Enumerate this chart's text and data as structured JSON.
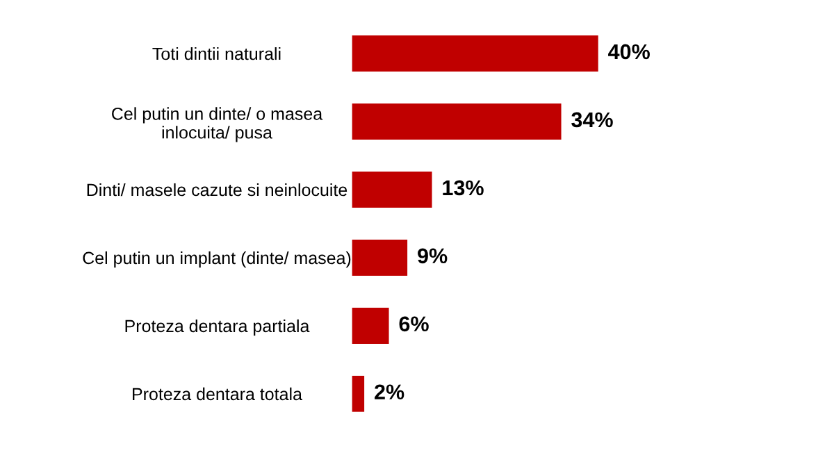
{
  "chart_data": {
    "type": "bar",
    "orientation": "horizontal",
    "categories": [
      "Toti dintii naturali",
      "Cel putin un dinte/ o masea\ninlocuita/ pusa",
      "Dinti/ masele cazute si neinlocuite",
      "Cel putin un implant (dinte/ masea)",
      "Proteza dentara partiala",
      "Proteza dentara totala"
    ],
    "values": [
      40,
      34,
      13,
      9,
      6,
      2
    ],
    "value_labels": [
      "40%",
      "34%",
      "13%",
      "9%",
      "6%",
      "2%"
    ],
    "color": "#c00000"
  }
}
